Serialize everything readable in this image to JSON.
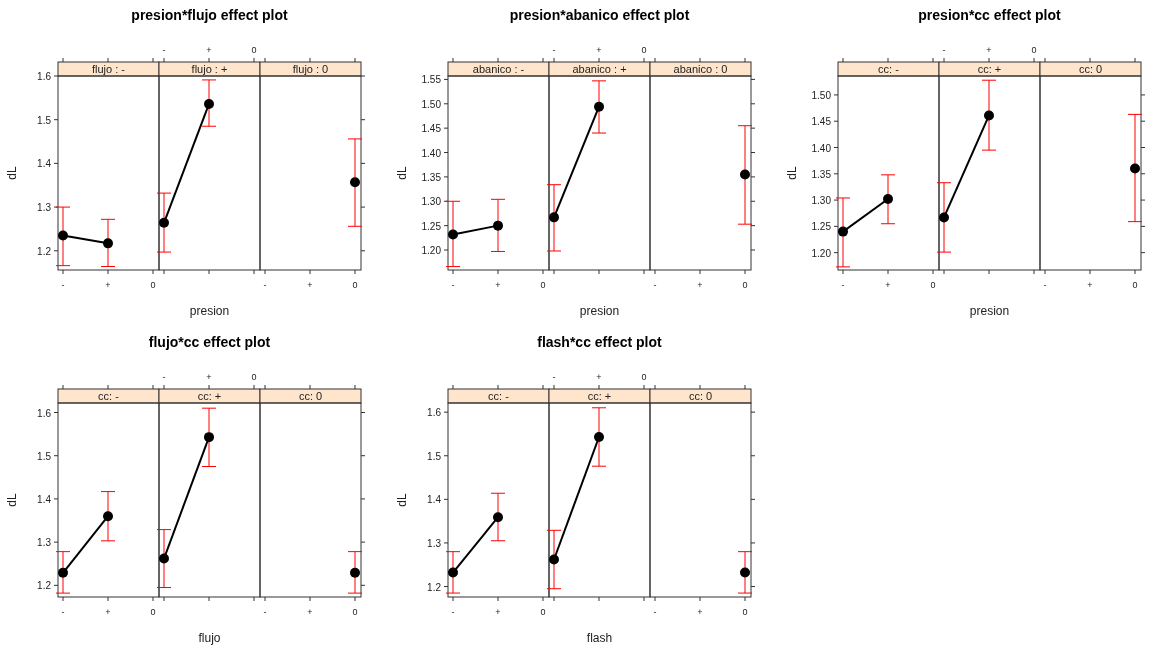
{
  "chart_data": [
    {
      "type": "line",
      "subtitle": "flujo : -",
      "ylabel": "dL",
      "categories": [
        "-",
        "+",
        "0"
      ],
      "ylim": [
        1.156,
        1.6
      ],
      "yticks": [
        1.2,
        1.3,
        1.4,
        1.5,
        1.6
      ],
      "marker": "circle",
      "line_style": "solid",
      "series": [
        {
          "color": "#000000",
          "values": [
            1.235,
            1.217,
            null
          ],
          "errors": [
            [
              1.166,
              1.3
            ],
            [
              1.164,
              1.272
            ],
            null
          ]
        }
      ]
    },
    {
      "type": "line",
      "title": "presion*flujo effect plot",
      "subtitle": "flujo : +",
      "xlabel": "presion",
      "categories": [
        "-",
        "+",
        "0"
      ],
      "ylim": [
        1.156,
        1.6
      ],
      "tick_labels": "x",
      "marker": "circle",
      "line_style": "solid",
      "series": [
        {
          "color": "#000000",
          "values": [
            1.264,
            1.536,
            null
          ],
          "errors": [
            [
              1.197,
              1.332
            ],
            [
              1.485,
              1.591
            ],
            null
          ]
        }
      ]
    },
    {
      "type": "line",
      "subtitle": "flujo : 0",
      "categories": [
        "-",
        "+",
        "0"
      ],
      "ylim": [
        1.156,
        1.6
      ],
      "yticks": [
        {
          "value": 1.2,
          "label": null
        },
        {
          "value": 1.3,
          "label": null
        },
        {
          "value": 1.4,
          "label": null
        },
        {
          "value": 1.5,
          "label": null
        },
        {
          "value": 1.6,
          "label": null
        }
      ],
      "tick_labels": "x",
      "marker": "circle",
      "line_style": "solid",
      "series": [
        {
          "color": "#000000",
          "values": [
            null,
            null,
            1.357
          ],
          "errors": [
            null,
            null,
            [
              1.256,
              1.456
            ]
          ]
        }
      ]
    },
    {
      "type": "line",
      "subtitle": "abanico : -",
      "ylabel": "dL",
      "categories": [
        "-",
        "+",
        "0"
      ],
      "ylim": [
        1.159,
        1.557
      ],
      "yticks": [
        {
          "value": 1.2,
          "label": "1.20"
        },
        1.25,
        {
          "value": 1.3,
          "label": "1.30"
        },
        1.35,
        {
          "value": 1.4,
          "label": "1.40"
        },
        1.45,
        {
          "value": 1.5,
          "label": "1.50"
        },
        1.55
      ],
      "marker": "circle",
      "line_style": "solid",
      "series": [
        {
          "color": "#000000",
          "values": [
            1.232,
            1.25,
            null
          ],
          "errors": [
            [
              1.166,
              1.3
            ],
            [
              1.197,
              1.304
            ],
            null
          ]
        }
      ]
    },
    {
      "type": "line",
      "title": "presion*abanico effect plot",
      "subtitle": "abanico : +",
      "xlabel": "presion",
      "categories": [
        "-",
        "+",
        "0"
      ],
      "ylim": [
        1.159,
        1.557
      ],
      "tick_labels": "x",
      "marker": "circle",
      "line_style": "solid",
      "series": [
        {
          "color": "#000000",
          "values": [
            1.267,
            1.494,
            null
          ],
          "errors": [
            [
              1.198,
              1.334
            ],
            [
              1.44,
              1.547
            ],
            null
          ]
        }
      ]
    },
    {
      "type": "line",
      "subtitle": "abanico : 0",
      "categories": [
        "-",
        "+",
        "0"
      ],
      "ylim": [
        1.159,
        1.557
      ],
      "yticks": [
        {
          "value": 1.2,
          "label": null
        },
        {
          "value": 1.25,
          "label": null
        },
        {
          "value": 1.3,
          "label": null
        },
        {
          "value": 1.35,
          "label": null
        },
        {
          "value": 1.4,
          "label": null
        },
        {
          "value": 1.45,
          "label": null
        },
        {
          "value": 1.5,
          "label": null
        },
        {
          "value": 1.55,
          "label": null
        }
      ],
      "tick_labels": "x",
      "marker": "circle",
      "line_style": "solid",
      "series": [
        {
          "color": "#000000",
          "values": [
            null,
            null,
            1.355
          ],
          "errors": [
            null,
            null,
            [
              1.253,
              1.455
            ]
          ]
        }
      ]
    },
    {
      "type": "line",
      "subtitle": "cc: -",
      "ylabel": "dL",
      "categories": [
        "-",
        "+",
        "0"
      ],
      "ylim": [
        1.167,
        1.536
      ],
      "yticks": [
        {
          "value": 1.2,
          "label": "1.20"
        },
        1.25,
        {
          "value": 1.3,
          "label": "1.30"
        },
        1.35,
        {
          "value": 1.4,
          "label": "1.40"
        },
        1.45,
        {
          "value": 1.5,
          "label": "1.50"
        }
      ],
      "marker": "circle",
      "line_style": "solid",
      "series": [
        {
          "color": "#000000",
          "values": [
            1.24,
            1.302,
            null
          ],
          "errors": [
            [
              1.173,
              1.304
            ],
            [
              1.255,
              1.348
            ],
            null
          ]
        }
      ]
    },
    {
      "type": "line",
      "title": "presion*cc effect plot",
      "subtitle": "cc: +",
      "xlabel": "presion",
      "categories": [
        "-",
        "+",
        "0"
      ],
      "ylim": [
        1.167,
        1.536
      ],
      "tick_labels": "x",
      "marker": "circle",
      "line_style": "solid",
      "series": [
        {
          "color": "#000000",
          "values": [
            1.267,
            1.461,
            null
          ],
          "errors": [
            [
              1.201,
              1.333
            ],
            [
              1.395,
              1.528
            ],
            null
          ]
        }
      ]
    },
    {
      "type": "line",
      "subtitle": "cc: 0",
      "categories": [
        "-",
        "+",
        "0"
      ],
      "ylim": [
        1.167,
        1.536
      ],
      "yticks": [
        {
          "value": 1.2,
          "label": null
        },
        {
          "value": 1.25,
          "label": null
        },
        {
          "value": 1.3,
          "label": null
        },
        {
          "value": 1.35,
          "label": null
        },
        {
          "value": 1.4,
          "label": null
        },
        {
          "value": 1.45,
          "label": null
        },
        {
          "value": 1.5,
          "label": null
        }
      ],
      "tick_labels": "x",
      "marker": "circle",
      "line_style": "solid",
      "series": [
        {
          "color": "#000000",
          "values": [
            null,
            null,
            1.36
          ],
          "errors": [
            null,
            null,
            [
              1.259,
              1.463
            ]
          ]
        }
      ]
    },
    {
      "type": "line",
      "subtitle": "cc: -",
      "ylabel": "dL",
      "categories": [
        "-",
        "+",
        "0"
      ],
      "ylim": [
        1.173,
        1.622
      ],
      "yticks": [
        1.2,
        1.3,
        1.4,
        1.5,
        1.6
      ],
      "marker": "circle",
      "line_style": "solid",
      "series": [
        {
          "color": "#000000",
          "values": [
            1.229,
            1.36,
            null
          ],
          "errors": [
            [
              1.182,
              1.278
            ],
            [
              1.303,
              1.417
            ],
            null
          ]
        }
      ]
    },
    {
      "type": "line",
      "title": "flujo*cc effect plot",
      "subtitle": "cc: +",
      "xlabel": "flujo",
      "categories": [
        "-",
        "+",
        "0"
      ],
      "ylim": [
        1.173,
        1.622
      ],
      "tick_labels": "x",
      "marker": "circle",
      "line_style": "solid",
      "series": [
        {
          "color": "#000000",
          "values": [
            1.262,
            1.543,
            null
          ],
          "errors": [
            [
              1.195,
              1.329
            ],
            [
              1.475,
              1.61
            ],
            null
          ]
        }
      ]
    },
    {
      "type": "line",
      "subtitle": "cc: 0",
      "categories": [
        "-",
        "+",
        "0"
      ],
      "ylim": [
        1.173,
        1.622
      ],
      "yticks": [
        {
          "value": 1.2,
          "label": null
        },
        {
          "value": 1.3,
          "label": null
        },
        {
          "value": 1.4,
          "label": null
        },
        {
          "value": 1.5,
          "label": null
        },
        {
          "value": 1.6,
          "label": null
        }
      ],
      "tick_labels": "x",
      "marker": "circle",
      "line_style": "solid",
      "series": [
        {
          "color": "#000000",
          "values": [
            null,
            null,
            1.229
          ],
          "errors": [
            null,
            null,
            [
              1.182,
              1.278
            ]
          ]
        }
      ]
    },
    {
      "type": "line",
      "subtitle": "cc: -",
      "ylabel": "dL",
      "categories": [
        "-",
        "+",
        "0"
      ],
      "ylim": [
        1.176,
        1.621
      ],
      "yticks": [
        1.2,
        1.3,
        1.4,
        1.5,
        1.6
      ],
      "marker": "circle",
      "line_style": "solid",
      "series": [
        {
          "color": "#000000",
          "values": [
            1.232,
            1.359,
            null
          ],
          "errors": [
            [
              1.185,
              1.28
            ],
            [
              1.305,
              1.414
            ],
            null
          ]
        }
      ]
    },
    {
      "type": "line",
      "title": "flash*cc effect plot",
      "subtitle": "cc: +",
      "xlabel": "flash",
      "categories": [
        "-",
        "+",
        "0"
      ],
      "ylim": [
        1.176,
        1.621
      ],
      "tick_labels": "x",
      "marker": "circle",
      "line_style": "solid",
      "series": [
        {
          "color": "#000000",
          "values": [
            1.262,
            1.543,
            null
          ],
          "errors": [
            [
              1.195,
              1.329
            ],
            [
              1.476,
              1.61
            ],
            null
          ]
        }
      ]
    },
    {
      "type": "line",
      "subtitle": "cc: 0",
      "categories": [
        "-",
        "+",
        "0"
      ],
      "ylim": [
        1.176,
        1.621
      ],
      "yticks": [
        {
          "value": 1.2,
          "label": null
        },
        {
          "value": 1.3,
          "label": null
        },
        {
          "value": 1.4,
          "label": null
        },
        {
          "value": 1.5,
          "label": null
        },
        {
          "value": 1.6,
          "label": null
        }
      ],
      "tick_labels": "x",
      "marker": "circle",
      "line_style": "solid",
      "series": [
        {
          "color": "#000000",
          "values": [
            null,
            null,
            1.232
          ],
          "errors": [
            null,
            null,
            [
              1.185,
              1.28
            ]
          ]
        }
      ]
    }
  ]
}
